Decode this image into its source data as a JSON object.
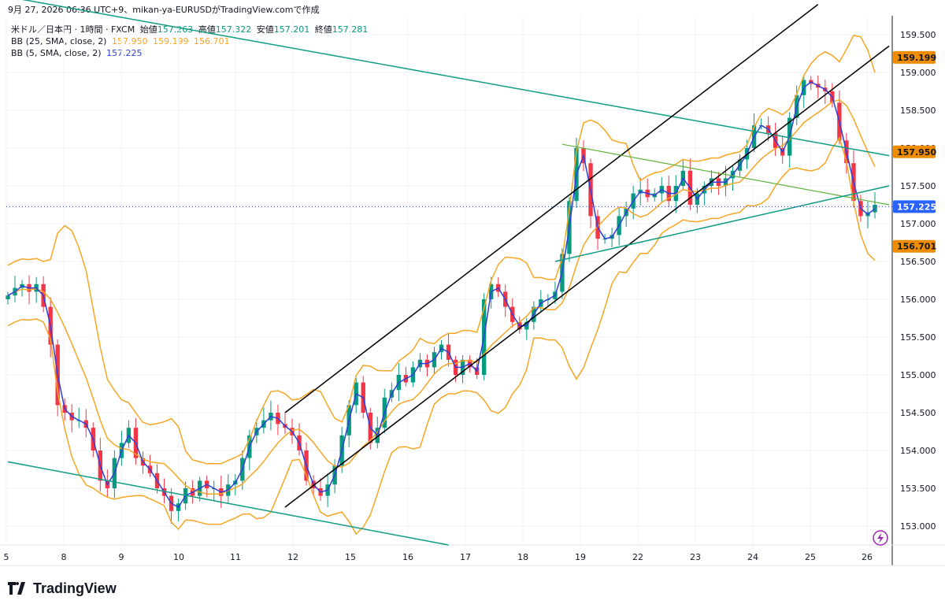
{
  "header": {
    "caption": "9月 27, 2026 06:36 UTC+9、mikan-ya-EURUSDがTradingView.comで作成"
  },
  "legend": {
    "symbol": "米ドル／日本円 · 1時間 · FXCM",
    "o_label": "始値",
    "o": "157.263",
    "h_label": "高値",
    "h": "157.322",
    "l_label": "安値",
    "l": "157.201",
    "c_label": "終値",
    "c": "157.281",
    "bb25_label": "BB (25, SMA, close, 2)",
    "bb25_mid": "157.950",
    "bb25_up": "159.199",
    "bb25_low": "156.701",
    "bb5_label": "BB (5, SMA, close, 2)",
    "bb5_mid": "157.225"
  },
  "colors": {
    "up": "#089981",
    "down": "#f23645",
    "bb25": "#f5a623",
    "bb5": "#2f3fd8",
    "channel": "#000000",
    "trend": "#109b83",
    "green_line": "#5fb43a",
    "tag_orange": "#f08c00",
    "tag_blue": "#2962ff"
  },
  "footer": {
    "brand": "TradingView",
    "logo_icon": "tradingview-logo-icon"
  },
  "chart_data": {
    "type": "candlestick",
    "instrument": "米ドル／日本円",
    "timeframe": "1時間",
    "yticks": [
      "153.000",
      "153.500",
      "154.000",
      "154.500",
      "155.000",
      "155.500",
      "156.000",
      "156.500",
      "157.000",
      "157.500",
      "158.000",
      "158.500",
      "159.000",
      "159.500"
    ],
    "ylim": [
      152.75,
      159.75
    ],
    "xticks": [
      "5",
      "8",
      "9",
      "10",
      "11",
      "12",
      "15",
      "16",
      "17",
      "18",
      "19",
      "22",
      "23",
      "24",
      "25",
      "26"
    ],
    "xtick_index": [
      0,
      1,
      2,
      3,
      4,
      5,
      6,
      7,
      8,
      9,
      10,
      11,
      12,
      13,
      14,
      15
    ],
    "price_tags": [
      {
        "label": "159.199",
        "value": 159.199,
        "color": "orange"
      },
      {
        "label": "157.950",
        "value": 157.95,
        "color": "orange"
      },
      {
        "label": "157.225",
        "value": 157.225,
        "color": "blue"
      },
      {
        "label": "156.701",
        "value": 156.701,
        "color": "orange"
      }
    ],
    "closes": [
      156.05,
      156.15,
      156.2,
      156.1,
      156.2,
      155.9,
      155.4,
      154.6,
      154.5,
      154.4,
      154.4,
      154.3,
      154.0,
      153.6,
      153.5,
      153.9,
      154.1,
      154.3,
      153.9,
      153.8,
      153.7,
      153.5,
      153.4,
      153.2,
      153.3,
      153.5,
      153.4,
      153.6,
      153.5,
      153.5,
      153.4,
      153.55,
      153.6,
      153.9,
      154.2,
      154.3,
      154.4,
      154.5,
      154.35,
      154.3,
      154.2,
      154.0,
      153.6,
      153.5,
      153.4,
      153.55,
      153.8,
      154.2,
      154.6,
      154.9,
      154.5,
      154.1,
      154.3,
      154.7,
      154.8,
      155.0,
      154.9,
      155.1,
      155.2,
      155.1,
      155.3,
      155.4,
      155.2,
      155.0,
      155.2,
      155.1,
      155.0,
      156.0,
      156.2,
      156.1,
      155.9,
      155.7,
      155.6,
      155.7,
      155.9,
      156.0,
      156.0,
      156.1,
      156.6,
      157.3,
      158.0,
      157.8,
      157.1,
      156.8,
      156.8,
      156.85,
      157.1,
      157.2,
      157.4,
      157.45,
      157.35,
      157.4,
      157.5,
      157.3,
      157.5,
      157.7,
      157.25,
      157.4,
      157.5,
      157.6,
      157.5,
      157.6,
      157.7,
      157.85,
      158.0,
      158.3,
      158.3,
      158.2,
      158.0,
      157.9,
      158.4,
      158.7,
      158.9,
      158.85,
      158.8,
      158.75,
      158.6,
      158.1,
      157.8,
      157.3,
      157.1,
      157.15,
      157.25
    ]
  }
}
